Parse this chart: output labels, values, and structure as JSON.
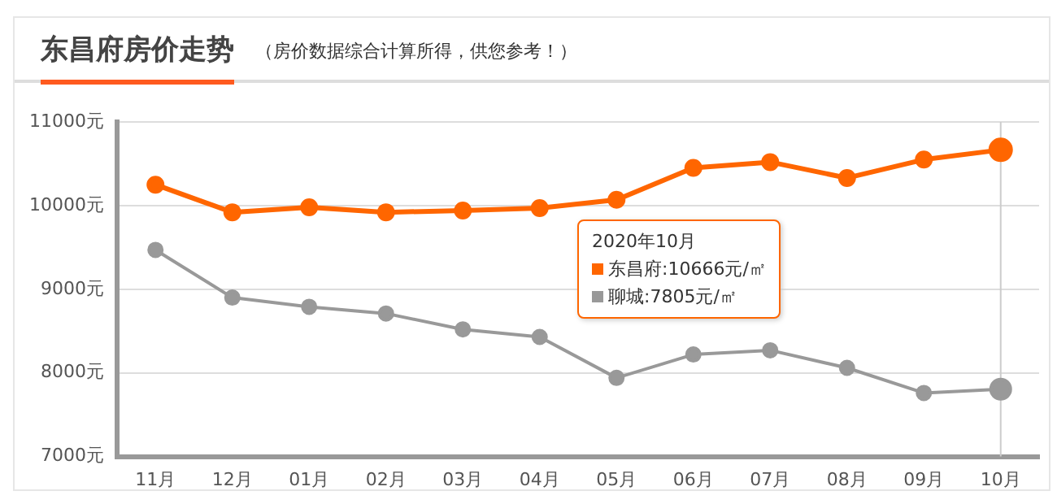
{
  "chart_data": {
    "type": "line",
    "title": "东昌府房价走势",
    "subtitle": "（房价数据综合计算所得，供您参考！）",
    "categories": [
      "11月",
      "12月",
      "01月",
      "02月",
      "03月",
      "04月",
      "05月",
      "06月",
      "07月",
      "08月",
      "09月",
      "10月"
    ],
    "series": [
      {
        "name": "东昌府",
        "color": "#ff6600",
        "values": [
          10250,
          9920,
          9980,
          9920,
          9940,
          9970,
          10070,
          10450,
          10520,
          10330,
          10550,
          10666
        ]
      },
      {
        "name": "聊城",
        "color": "#999999",
        "values": [
          9470,
          8900,
          8790,
          8710,
          8520,
          8430,
          7940,
          8220,
          8270,
          8060,
          7760,
          7805
        ]
      }
    ],
    "ylim": [
      7000,
      11000
    ],
    "yticks": [
      {
        "value": 7000,
        "label": "7000元"
      },
      {
        "value": 8000,
        "label": "8000元"
      },
      {
        "value": 9000,
        "label": "9000元"
      },
      {
        "value": 10000,
        "label": "10000元"
      },
      {
        "value": 11000,
        "label": "11000元"
      }
    ],
    "ref_lines": [
      {
        "axis": "x",
        "value": "10月",
        "color": "#cccccc"
      }
    ],
    "annotations": [
      "2020年10月",
      ":10666元/㎡",
      ":7805元/㎡"
    ],
    "grid": "y",
    "legend": "top right",
    "marker": "circle",
    "line_style": "solid"
  }
}
